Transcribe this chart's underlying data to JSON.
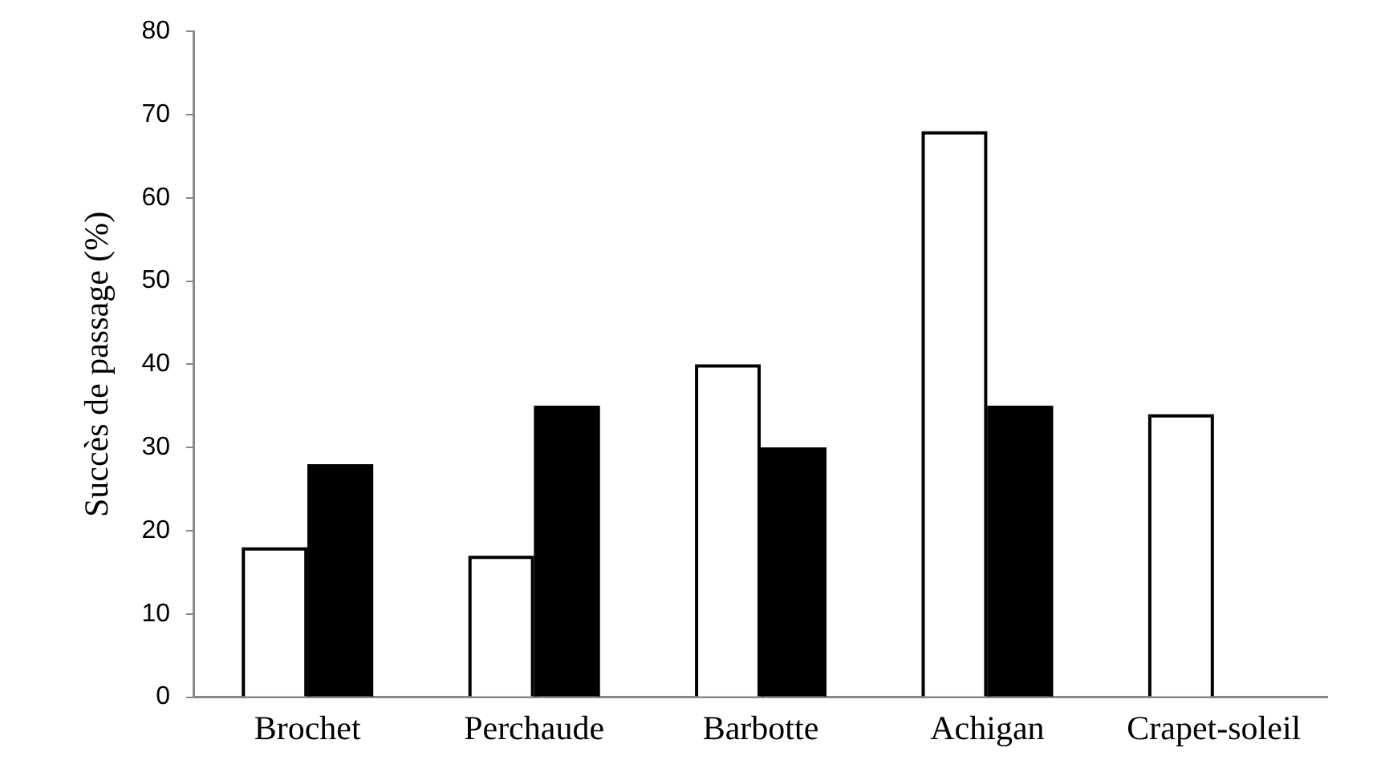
{
  "chart_data": {
    "type": "bar",
    "ylabel": "Succès de passage (%)",
    "categories": [
      "Brochet",
      "Perchaude",
      "Barbotte",
      "Achigan",
      "Crapet-soleil"
    ],
    "series": [
      {
        "color": "#ffffff",
        "values": [
          18,
          17,
          40,
          68,
          34
        ]
      },
      {
        "color": "#000000",
        "values": [
          28,
          35,
          30,
          35,
          null
        ]
      }
    ],
    "ylim": [
      0,
      80
    ],
    "yticks": [
      0,
      10,
      20,
      30,
      40,
      50,
      60,
      70,
      80
    ],
    "grid": false,
    "legend": false
  }
}
